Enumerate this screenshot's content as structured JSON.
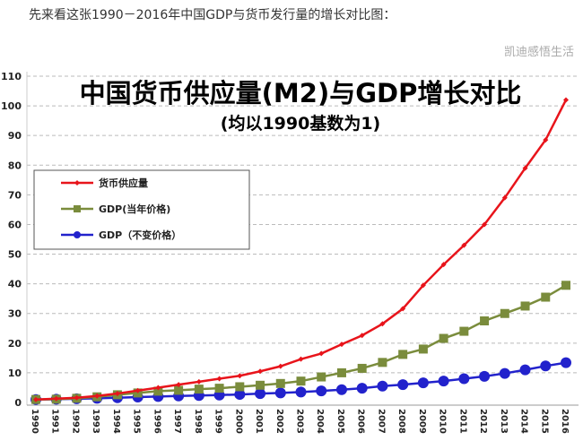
{
  "intro_text": "先来看这张1990－2016年中国GDP与货币发行量的增长对比图：",
  "watermark": "凯迪感悟生活",
  "chart_data": {
    "type": "line",
    "title": "中国货币供应量(M2)与GDP增长对比",
    "subtitle": "(均以1990基数为1)",
    "xlabel": "",
    "ylabel": "",
    "ylim": [
      0,
      110
    ],
    "yticks": [
      0,
      10,
      20,
      30,
      40,
      50,
      60,
      70,
      80,
      90,
      100,
      110
    ],
    "grid": true,
    "legend_position": "top-left",
    "x": [
      "1990",
      "1991",
      "1992",
      "1993",
      "1994",
      "1995",
      "1996",
      "1997",
      "1998",
      "1999",
      "2000",
      "2001",
      "2002",
      "2003",
      "2004",
      "2005",
      "2006",
      "2007",
      "2008",
      "2009",
      "2010",
      "2011",
      "2012",
      "2013",
      "2014",
      "2015",
      "2016"
    ],
    "series": [
      {
        "name": "货币供应量",
        "color": "#e8141b",
        "marker": "diamond",
        "values": [
          1,
          1.3,
          1.6,
          2.2,
          3,
          4,
          5,
          6,
          7,
          8,
          9,
          10.5,
          12.2,
          14.6,
          16.5,
          19.6,
          22.6,
          26.5,
          31.6,
          39.5,
          46.5,
          53,
          60,
          69,
          79,
          88.5,
          102
        ]
      },
      {
        "name": "GDP(当年价格)",
        "color": "#7a8c3c",
        "marker": "square",
        "values": [
          1,
          1.1,
          1.4,
          1.9,
          2.6,
          3.2,
          3.8,
          4.1,
          4.5,
          4.8,
          5.3,
          5.8,
          6.4,
          7.2,
          8.6,
          10,
          11.5,
          13.5,
          16.2,
          18,
          21.6,
          24,
          27.5,
          30,
          32.5,
          35.5,
          39.5
        ]
      },
      {
        "name": "GDP（不变价格）",
        "color": "#2222cc",
        "marker": "circle",
        "values": [
          1,
          1.1,
          1.25,
          1.4,
          1.6,
          1.8,
          2,
          2.2,
          2.35,
          2.5,
          2.7,
          3,
          3.2,
          3.5,
          3.9,
          4.3,
          4.8,
          5.5,
          6,
          6.6,
          7.2,
          8,
          8.8,
          9.8,
          11,
          12.3,
          13.4
        ]
      }
    ]
  }
}
